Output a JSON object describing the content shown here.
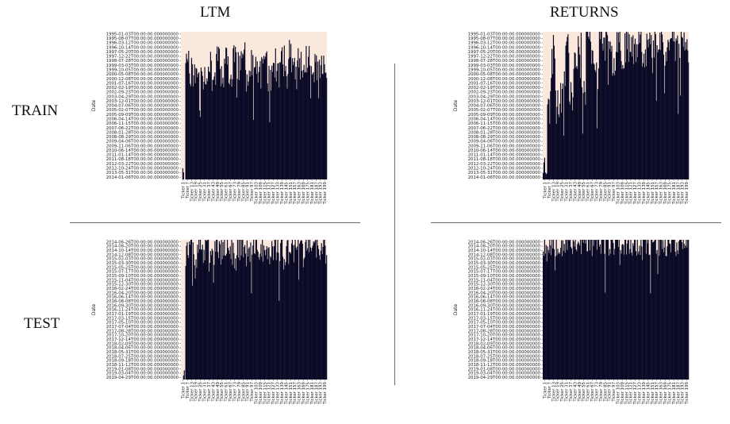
{
  "labels": {
    "col_ltm": "LTM",
    "col_returns": "RETURNS",
    "row_train": "TRAIN",
    "row_test": "TEST"
  },
  "colors": {
    "missing": "#fbe8dc",
    "present": "#0b0b26",
    "divider": "#6b6b6b"
  },
  "chart_data": [
    {
      "id": "ltm-train",
      "type": "heatmap",
      "title": "",
      "xlabel": "",
      "ylabel": "Date",
      "y_ticks": [
        "1995-01-03T00:00:00.000000000",
        "1995-08-07T00:00:00.000000000",
        "1996-03-12T00:00:00.000000000",
        "1996-10-14T00:00:00.000000000",
        "1997-05-20T00:00:00.000000000",
        "1997-12-22T00:00:00.000000000",
        "1998-07-28T00:00:00.000000000",
        "1999-03-03T00:00:00.000000000",
        "1999-10-05T00:00:00.000000000",
        "2000-05-08T00:00:00.000000000",
        "2000-12-08T00:00:00.000000000",
        "2001-07-16T00:00:00.000000000",
        "2002-02-19T00:00:00.000000000",
        "2002-09-23T00:00:00.000000000",
        "2003-04-29T00:00:00.000000000",
        "2003-12-01T00:00:00.000000000",
        "2004-07-06T00:00:00.000000000",
        "2005-02-07T00:00:00.000000000",
        "2005-09-09T00:00:00.000000000",
        "2006-04-14T00:00:00.000000000",
        "2006-11-15T00:00:00.000000000",
        "2007-06-22T00:00:00.000000000",
        "2008-01-28T00:00:00.000000000",
        "2008-08-29T00:00:00.000000000",
        "2009-04-06T00:00:00.000000000",
        "2009-11-06T00:00:00.000000000",
        "2010-06-14T00:00:00.000000000",
        "2011-01-14T00:00:00.000000000",
        "2011-08-18T00:00:00.000000000",
        "2012-03-22T00:00:00.000000000",
        "2012-10-24T00:00:00.000000000",
        "2013-05-31T00:00:00.000000000",
        "2014-01-06T00:00:00.000000000"
      ],
      "x_ticks": [
        "Ticker 1",
        "Ticker 7",
        "Ticker 13",
        "Ticker 19",
        "Ticker 25",
        "Ticker 31",
        "Ticker 37",
        "Ticker 43",
        "Ticker 49",
        "Ticker 55",
        "Ticker 61",
        "Ticker 67",
        "Ticker 73",
        "Ticker 79",
        "Ticker 85",
        "Ticker 91",
        "Ticker 97",
        "Ticker 103",
        "Ticker 109",
        "Ticker 115",
        "Ticker 121",
        "Ticker 127",
        "Ticker 133",
        "Ticker 139",
        "Ticker 145",
        "Ticker 151",
        "Ticker 157",
        "Ticker 163",
        "Ticker 169",
        "Ticker 175",
        "Ticker 181",
        "Ticker 187",
        "Ticker 193",
        "Ticker 199"
      ],
      "n_columns": 200,
      "filled_fraction_by_column_group": [
        0.0,
        0.82,
        0.73,
        0.7,
        0.78,
        0.71,
        0.76,
        0.7,
        0.86,
        0.72,
        0.8,
        0.68,
        0.85,
        0.76,
        0.82,
        0.7,
        0.77,
        0.74,
        0.72,
        0.84,
        0.7,
        0.78,
        0.72,
        0.8,
        0.74,
        0.86,
        0.72,
        0.78,
        0.74,
        0.82,
        0.7,
        0.78,
        0.74,
        0.76
      ],
      "seed": 11
    },
    {
      "id": "returns-train",
      "type": "heatmap",
      "title": "",
      "xlabel": "",
      "ylabel": "Date",
      "y_ticks": [
        "1995-01-03T00:00:00.000000000",
        "1995-08-07T00:00:00.000000000",
        "1996-03-12T00:00:00.000000000",
        "1996-10-14T00:00:00.000000000",
        "1997-05-20T00:00:00.000000000",
        "1997-12-22T00:00:00.000000000",
        "1998-07-28T00:00:00.000000000",
        "1999-03-03T00:00:00.000000000",
        "1999-10-05T00:00:00.000000000",
        "2000-05-08T00:00:00.000000000",
        "2000-12-08T00:00:00.000000000",
        "2001-07-16T00:00:00.000000000",
        "2002-02-19T00:00:00.000000000",
        "2002-09-23T00:00:00.000000000",
        "2003-04-29T00:00:00.000000000",
        "2003-12-01T00:00:00.000000000",
        "2004-07-06T00:00:00.000000000",
        "2005-02-07T00:00:00.000000000",
        "2005-09-09T00:00:00.000000000",
        "2006-04-14T00:00:00.000000000",
        "2006-11-15T00:00:00.000000000",
        "2007-06-22T00:00:00.000000000",
        "2008-01-28T00:00:00.000000000",
        "2008-08-29T00:00:00.000000000",
        "2009-04-06T00:00:00.000000000",
        "2009-11-06T00:00:00.000000000",
        "2010-06-14T00:00:00.000000000",
        "2011-01-14T00:00:00.000000000",
        "2011-08-18T00:00:00.000000000",
        "2012-03-22T00:00:00.000000000",
        "2012-10-24T00:00:00.000000000",
        "2013-05-31T00:00:00.000000000",
        "2014-01-06T00:00:00.000000000"
      ],
      "x_ticks": [
        "Ticker 1",
        "Ticker 7",
        "Ticker 13",
        "Ticker 19",
        "Ticker 25",
        "Ticker 31",
        "Ticker 37",
        "Ticker 43",
        "Ticker 49",
        "Ticker 55",
        "Ticker 61",
        "Ticker 67",
        "Ticker 73",
        "Ticker 79",
        "Ticker 85",
        "Ticker 91",
        "Ticker 97",
        "Ticker 103",
        "Ticker 109",
        "Ticker 115",
        "Ticker 121",
        "Ticker 127",
        "Ticker 133",
        "Ticker 139",
        "Ticker 145",
        "Ticker 151",
        "Ticker 157",
        "Ticker 163",
        "Ticker 169",
        "Ticker 175",
        "Ticker 181",
        "Ticker 187",
        "Ticker 193",
        "Ticker 199"
      ],
      "n_columns": 200,
      "filled_fraction_by_column_group": [
        0.1,
        0.6,
        0.9,
        0.5,
        0.75,
        0.95,
        0.55,
        0.85,
        0.92,
        0.6,
        0.97,
        0.88,
        0.7,
        0.98,
        0.9,
        0.93,
        0.8,
        0.96,
        0.85,
        0.9,
        0.94,
        0.88,
        0.97,
        0.86,
        0.92,
        0.9,
        0.95,
        0.98,
        0.84,
        0.93,
        0.99,
        0.9,
        0.96,
        0.88
      ],
      "seed": 23
    },
    {
      "id": "ltm-test",
      "type": "heatmap",
      "title": "",
      "xlabel": "",
      "ylabel": "Date",
      "y_ticks": [
        "2014-06-26T00:00:00.000000000",
        "2014-08-20T00:00:00.000000000",
        "2014-10-14T00:00:00.000000000",
        "2014-12-08T00:00:00.000000000",
        "2015-02-03T00:00:00.000000000",
        "2015-03-30T00:00:00.000000000",
        "2015-05-25T00:00:00.000000000",
        "2015-07-17T00:00:00.000000000",
        "2015-09-10T00:00:00.000000000",
        "2015-11-04T00:00:00.000000000",
        "2015-12-30T00:00:00.000000000",
        "2016-02-24T00:00:00.000000000",
        "2016-04-20T00:00:00.000000000",
        "2016-06-14T00:00:00.000000000",
        "2016-08-08T00:00:00.000000000",
        "2016-09-30T00:00:00.000000000",
        "2016-11-24T00:00:00.000000000",
        "2017-01-19T00:00:00.000000000",
        "2017-03-15T00:00:00.000000000",
        "2017-05-10T00:00:00.000000000",
        "2017-07-04T00:00:00.000000000",
        "2017-08-28T00:00:00.000000000",
        "2017-10-20T00:00:00.000000000",
        "2017-12-14T00:00:00.000000000",
        "2018-02-09T00:00:00.000000000",
        "2018-04-06T00:00:00.000000000",
        "2018-05-31T00:00:00.000000000",
        "2018-07-25T00:00:00.000000000",
        "2018-09-18T00:00:00.000000000",
        "2018-11-12T00:00:00.000000000",
        "2019-01-08T00:00:00.000000000",
        "2019-03-04T00:00:00.000000000",
        "2019-04-29T00:00:00.000000000"
      ],
      "x_ticks": [
        "Ticker 1",
        "Ticker 7",
        "Ticker 13",
        "Ticker 19",
        "Ticker 25",
        "Ticker 31",
        "Ticker 37",
        "Ticker 43",
        "Ticker 49",
        "Ticker 55",
        "Ticker 61",
        "Ticker 67",
        "Ticker 73",
        "Ticker 79",
        "Ticker 85",
        "Ticker 91",
        "Ticker 97",
        "Ticker 103",
        "Ticker 109",
        "Ticker 115",
        "Ticker 121",
        "Ticker 127",
        "Ticker 133",
        "Ticker 139",
        "Ticker 145",
        "Ticker 151",
        "Ticker 157",
        "Ticker 163",
        "Ticker 169",
        "Ticker 175",
        "Ticker 181",
        "Ticker 187",
        "Ticker 193",
        "Ticker 199"
      ],
      "n_columns": 200,
      "filled_fraction_by_column_group": [
        0.02,
        0.9,
        0.94,
        0.88,
        0.96,
        0.9,
        0.93,
        0.91,
        0.97,
        0.89,
        0.95,
        0.92,
        0.9,
        0.96,
        0.93,
        0.9,
        0.94,
        0.92,
        0.95,
        0.9,
        0.93,
        0.96,
        0.91,
        0.94,
        0.9,
        0.95,
        0.92,
        0.94,
        0.91,
        0.96,
        0.9,
        0.94,
        0.92,
        0.93
      ],
      "seed": 37
    },
    {
      "id": "returns-test",
      "type": "heatmap",
      "title": "",
      "xlabel": "",
      "ylabel": "Date",
      "y_ticks": [
        "2014-06-26T00:00:00.000000000",
        "2014-08-20T00:00:00.000000000",
        "2014-10-14T00:00:00.000000000",
        "2014-12-08T00:00:00.000000000",
        "2015-02-03T00:00:00.000000000",
        "2015-03-30T00:00:00.000000000",
        "2015-05-25T00:00:00.000000000",
        "2015-07-17T00:00:00.000000000",
        "2015-09-10T00:00:00.000000000",
        "2015-11-04T00:00:00.000000000",
        "2015-12-30T00:00:00.000000000",
        "2016-02-24T00:00:00.000000000",
        "2016-04-20T00:00:00.000000000",
        "2016-06-14T00:00:00.000000000",
        "2016-08-08T00:00:00.000000000",
        "2016-09-30T00:00:00.000000000",
        "2016-11-24T00:00:00.000000000",
        "2017-01-19T00:00:00.000000000",
        "2017-03-15T00:00:00.000000000",
        "2017-05-10T00:00:00.000000000",
        "2017-07-04T00:00:00.000000000",
        "2017-08-28T00:00:00.000000000",
        "2017-10-20T00:00:00.000000000",
        "2017-12-14T00:00:00.000000000",
        "2018-02-09T00:00:00.000000000",
        "2018-04-06T00:00:00.000000000",
        "2018-05-31T00:00:00.000000000",
        "2018-07-25T00:00:00.000000000",
        "2018-09-18T00:00:00.000000000",
        "2018-11-12T00:00:00.000000000",
        "2019-01-08T00:00:00.000000000",
        "2019-03-04T00:00:00.000000000",
        "2019-04-29T00:00:00.000000000"
      ],
      "x_ticks": [
        "Ticker 1",
        "Ticker 7",
        "Ticker 13",
        "Ticker 19",
        "Ticker 25",
        "Ticker 31",
        "Ticker 37",
        "Ticker 43",
        "Ticker 49",
        "Ticker 55",
        "Ticker 61",
        "Ticker 67",
        "Ticker 73",
        "Ticker 79",
        "Ticker 85",
        "Ticker 91",
        "Ticker 97",
        "Ticker 103",
        "Ticker 109",
        "Ticker 115",
        "Ticker 121",
        "Ticker 127",
        "Ticker 133",
        "Ticker 139",
        "Ticker 145",
        "Ticker 151",
        "Ticker 157",
        "Ticker 163",
        "Ticker 169",
        "Ticker 175",
        "Ticker 181",
        "Ticker 187",
        "Ticker 193",
        "Ticker 199"
      ],
      "n_columns": 200,
      "filled_fraction_by_column_group": [
        0.97,
        0.99,
        0.99,
        0.99,
        0.98,
        0.99,
        0.99,
        0.99,
        0.99,
        0.99,
        0.99,
        0.99,
        0.99,
        0.99,
        0.99,
        0.99,
        0.99,
        0.99,
        0.99,
        0.99,
        0.99,
        0.99,
        0.99,
        0.99,
        0.99,
        0.99,
        0.99,
        0.99,
        0.99,
        0.99,
        0.99,
        0.99,
        0.99,
        0.99
      ],
      "seed": 53
    }
  ]
}
